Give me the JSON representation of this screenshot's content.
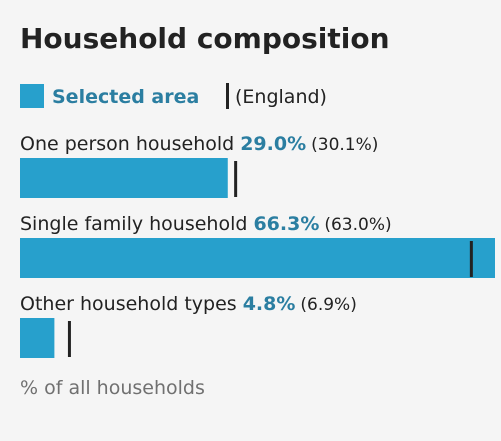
{
  "chart_data": {
    "type": "bar",
    "title": "Household composition",
    "categories": [
      "One person household",
      "Single family household",
      "Other household types"
    ],
    "series": [
      {
        "name": "Selected area",
        "color": "#27a0cc",
        "values": [
          29.0,
          66.3,
          4.8
        ],
        "value_labels": [
          "29.0%",
          "66.3%",
          "4.8%"
        ]
      },
      {
        "name": "(England)",
        "color": "#222222",
        "values": [
          30.1,
          63.0,
          6.9
        ],
        "value_labels": [
          "(30.1%)",
          "(63.0%)",
          "(6.9%)"
        ]
      }
    ],
    "xlim": [
      0,
      66.3
    ],
    "x_label": "% of all households"
  }
}
